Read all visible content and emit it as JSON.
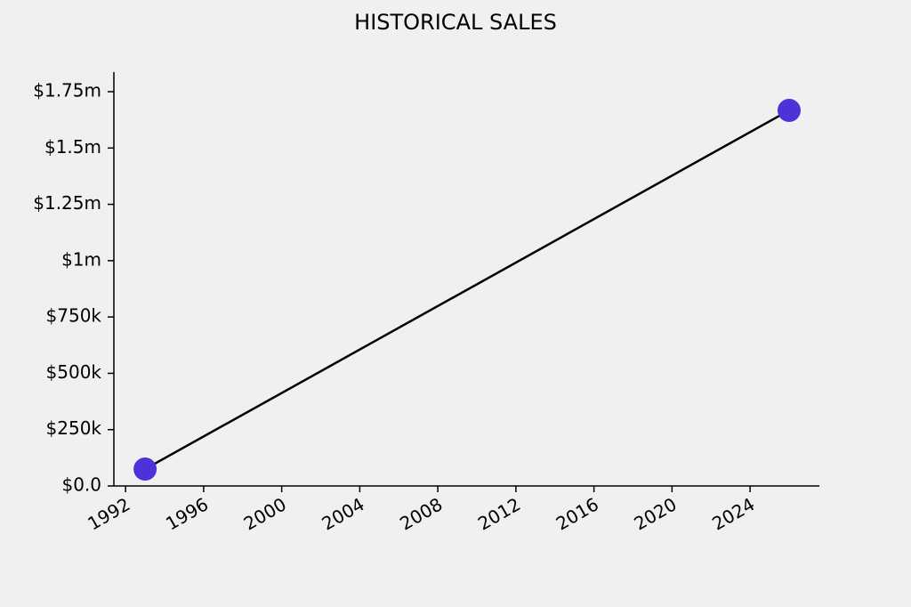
{
  "chart_data": {
    "type": "line",
    "title": "HISTORICAL SALES",
    "x": [
      1993,
      2026
    ],
    "series": [
      {
        "values": [
          75000,
          1667000
        ],
        "color": "#000000",
        "marker_color": "#4b32d9"
      }
    ],
    "xlim": [
      1991.4,
      2027.55
    ],
    "xticks": [
      1992,
      1996,
      2000,
      2004,
      2008,
      2012,
      2016,
      2020,
      2024
    ],
    "ylim": [
      0,
      1837000
    ],
    "yticks": [
      {
        "value": 0,
        "label": "$0.0"
      },
      {
        "value": 250000,
        "label": "$250k"
      },
      {
        "value": 500000,
        "label": "$500k"
      },
      {
        "value": 750000,
        "label": "$750k"
      },
      {
        "value": 1000000,
        "label": "$1m"
      },
      {
        "value": 1250000,
        "label": "$1.25m"
      },
      {
        "value": 1500000,
        "label": "$1.5m"
      },
      {
        "value": 1750000,
        "label": "$1.75m"
      }
    ],
    "grid": false
  }
}
